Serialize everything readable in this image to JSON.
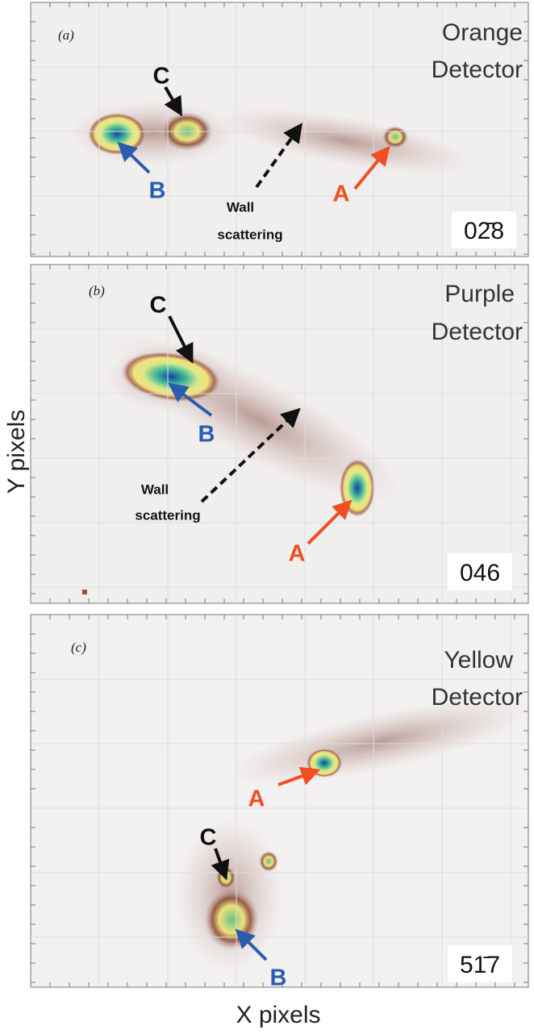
{
  "axes": {
    "x_label": "X pixels",
    "y_label": "Y pixels"
  },
  "panels": [
    {
      "label": "(a)",
      "detector": [
        "Orange",
        "Detector"
      ],
      "markers": [
        "A",
        "B",
        "C"
      ],
      "wall": [
        "Wall",
        "scattering"
      ],
      "index": "02̄8"
    },
    {
      "label": "(b)",
      "detector": [
        "Purple",
        "Detector"
      ],
      "markers": [
        "A",
        "B",
        "C"
      ],
      "wall": [
        "Wall",
        "scattering"
      ],
      "index": "046"
    },
    {
      "label": "(c)",
      "detector": [
        "Yellow",
        "Detector"
      ],
      "markers": [
        "A",
        "B",
        "C"
      ],
      "index": "51̄7"
    }
  ]
}
